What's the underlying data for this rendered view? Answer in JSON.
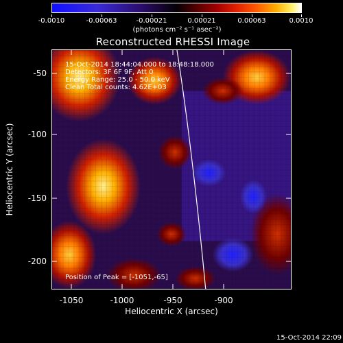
{
  "colorbar": {
    "ticks": [
      "-0.0010",
      "-0.00063",
      "-0.00021",
      "0.00021",
      "0.00063",
      "0.0010"
    ],
    "units": "(photons cm⁻² s⁻¹ asec⁻²)"
  },
  "title": "Reconstructed RHESSI Image",
  "info": {
    "time_range": "15-Oct-2014 18:44:04.000 to 18:48:18.000",
    "detectors": "Detectors: 3F 6F 9F, Att 0",
    "energy_range": "Energy Range: 25.0 - 50.0 keV",
    "method": "Clean    Total counts: 4.62E+03"
  },
  "peak": "Position of Peak = [-1051,-65]",
  "axes": {
    "xlabel": "Heliocentric X (arcsec)",
    "ylabel": "Heliocentric Y (arcsec)",
    "xticks": [
      "-1050",
      "-1000",
      "-950",
      "-900"
    ],
    "yticks": [
      "-50",
      "-100",
      "-150",
      "-200"
    ]
  },
  "timestamp": "15-Oct-2014 22:09"
}
